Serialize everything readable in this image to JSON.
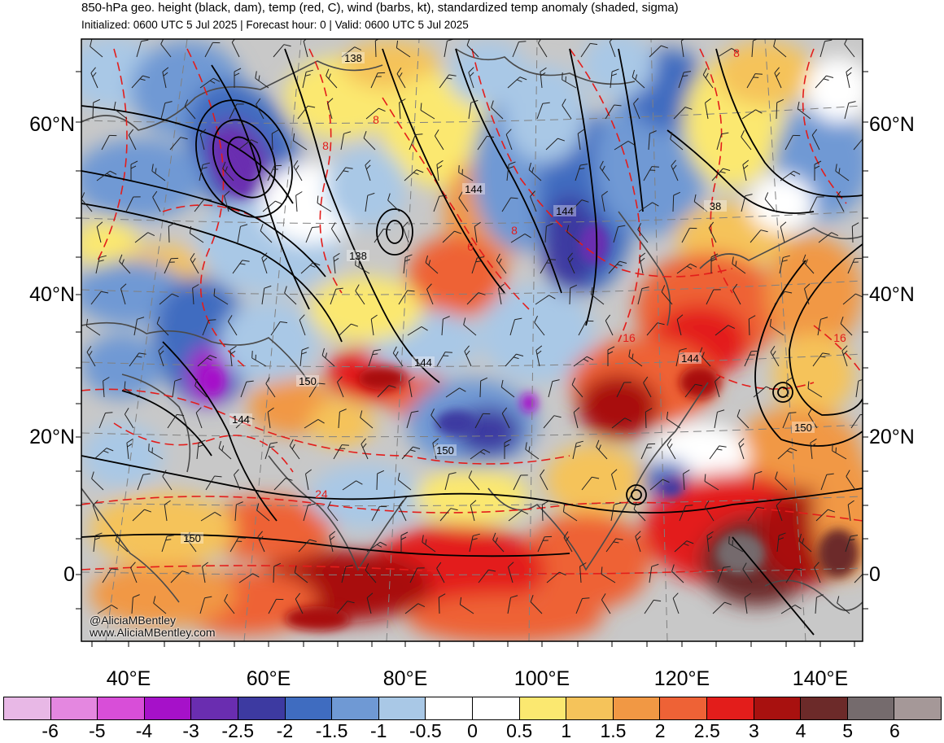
{
  "header": {
    "title": "850-hPa geo. height (black, dam), temp (red, C), wind (barbs, kt), standardized temp anomaly (shaded, sigma)",
    "subtitle": "Initialized: 0600 UTC 5 Jul 2025 | Forecast hour: 0 | Valid: 0600 UTC 5 Jul 2025"
  },
  "axes": {
    "lat_labels": [
      "60°N",
      "40°N",
      "20°N",
      "0"
    ],
    "lon_labels": [
      "40°E",
      "60°E",
      "80°E",
      "100°E",
      "120°E",
      "140°E"
    ]
  },
  "legend": {
    "labels": [
      "-6",
      "-5",
      "-4",
      "-3",
      "-2.5",
      "-2",
      "-1.5",
      "-1",
      "-0.5",
      "0",
      "0.5",
      "1",
      "1.5",
      "2",
      "2.5",
      "3",
      "4",
      "5",
      "6"
    ],
    "colors": [
      "#e8b8e6",
      "#e487e0",
      "#d84ed8",
      "#a611c9",
      "#6a2db0",
      "#3d3aa1",
      "#3f6cc0",
      "#6f99d4",
      "#a9c8e6",
      "#ffffff",
      "#ffffff",
      "#fbe870",
      "#f5c35a",
      "#f19844",
      "#ee6236",
      "#e31d1b",
      "#a8110f",
      "#6c2a29",
      "#756b6d",
      "#a59898"
    ]
  },
  "contours": {
    "height_labels": [
      "138",
      "144",
      "144",
      "138",
      "150",
      "144",
      "144",
      "150",
      "150",
      "144",
      "150",
      "38"
    ],
    "temp_labels": [
      "8",
      "8",
      "8",
      "6",
      "8",
      "16",
      "16",
      "24"
    ]
  },
  "credits": {
    "handle": "@AliciaMBentley",
    "site": "www.AliciaMBentley.com"
  },
  "colors": {
    "height_contour": "#000000",
    "temp_contour": "#e31d1b",
    "coastline": "#4a4a4a",
    "graticule": "#808080"
  }
}
